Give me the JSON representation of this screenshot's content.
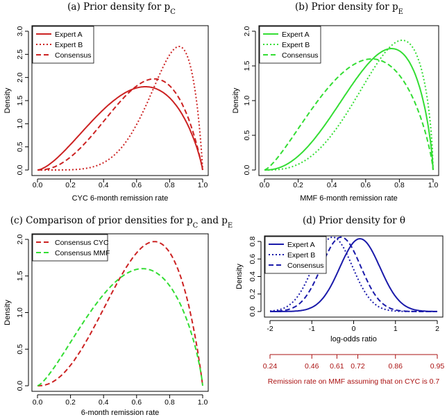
{
  "chart_data": [
    {
      "type": "line",
      "panel": "a",
      "title": "(a) Prior density for p",
      "title_sub": "C",
      "xlabel": "CYC 6-month remission rate",
      "ylabel": "Density",
      "xlim": [
        0,
        1
      ],
      "ylim": [
        0,
        3.0
      ],
      "xticks": [
        0.0,
        0.2,
        0.4,
        0.6,
        0.8,
        1.0
      ],
      "xtick_labels": [
        "0.0",
        "0.2",
        "0.4",
        "0.6",
        "0.8",
        "1.0"
      ],
      "yticks": [
        0.0,
        0.5,
        1.0,
        1.5,
        2.0,
        2.5,
        3.0
      ],
      "ytick_labels": [
        "0.0",
        "0.5",
        "1.0",
        "1.5",
        "2.0",
        "2.5",
        "3.0"
      ],
      "color": "#cc2222",
      "legend_position": "top-left",
      "series": [
        {
          "name": "Expert A",
          "dash": "solid",
          "alpha": 2.6,
          "beta": 1.85,
          "peak_x": 0.65,
          "peak_y": 1.8
        },
        {
          "name": "Expert B",
          "dash": "dotted",
          "alpha": 6.4,
          "beta": 1.9,
          "peak_x": 0.85,
          "peak_y": 2.67
        },
        {
          "name": "Consensus",
          "dash": "dashed",
          "alpha": 3.3,
          "beta": 1.95,
          "peak_x": 0.71,
          "peak_y": 1.97
        }
      ]
    },
    {
      "type": "line",
      "panel": "b",
      "title": "(b) Prior density for p",
      "title_sub": "E",
      "xlabel": "MMF 6-month remission rate",
      "ylabel": "Density",
      "xlim": [
        0,
        1
      ],
      "ylim": [
        0,
        2.0
      ],
      "xticks": [
        0.0,
        0.2,
        0.4,
        0.6,
        0.8,
        1.0
      ],
      "xtick_labels": [
        "0.0",
        "0.2",
        "0.4",
        "0.6",
        "0.8",
        "1.0"
      ],
      "yticks": [
        0.0,
        0.5,
        1.0,
        1.5,
        2.0
      ],
      "ytick_labels": [
        "0.0",
        "0.5",
        "1.0",
        "1.5",
        "2.0"
      ],
      "color": "#33dd33",
      "legend_position": "top-left",
      "series": [
        {
          "name": "Expert A",
          "dash": "solid",
          "alpha": 3.3,
          "beta": 1.75,
          "peak_x": 0.76,
          "peak_y": 1.75
        },
        {
          "name": "Expert B",
          "dash": "dotted",
          "alpha": 3.9,
          "beta": 1.65,
          "peak_x": 0.82,
          "peak_y": 1.87
        },
        {
          "name": "Consensus",
          "dash": "dashed",
          "alpha": 2.4,
          "beta": 1.8,
          "peak_x": 0.64,
          "peak_y": 1.6
        }
      ]
    },
    {
      "type": "line",
      "panel": "c",
      "title": "(c) Comparison of prior densities for p",
      "title_sub": "C",
      "title_mid": " and p",
      "title_sub2": "E",
      "xlabel": "6-month remission rate",
      "ylabel": "Density",
      "xlim": [
        0,
        1
      ],
      "ylim": [
        0,
        2.0
      ],
      "xticks": [
        0.0,
        0.2,
        0.4,
        0.6,
        0.8,
        1.0
      ],
      "xtick_labels": [
        "0.0",
        "0.2",
        "0.4",
        "0.6",
        "0.8",
        "1.0"
      ],
      "yticks": [
        0.0,
        0.5,
        1.0,
        1.5,
        2.0
      ],
      "ytick_labels": [
        "0.0",
        "0.5",
        "1.0",
        "1.5",
        "2.0"
      ],
      "legend_position": "top-left",
      "series": [
        {
          "name": "Consensus CYC",
          "dash": "dashed",
          "color": "#cc2222",
          "alpha": 3.3,
          "beta": 1.95,
          "peak_x": 0.71,
          "peak_y": 1.97
        },
        {
          "name": "Consensus MMF",
          "dash": "dashed",
          "color": "#33dd33",
          "alpha": 2.4,
          "beta": 1.8,
          "peak_x": 0.64,
          "peak_y": 1.6
        }
      ]
    },
    {
      "type": "line",
      "panel": "d",
      "title": "(d) Prior density for θ",
      "xlabel": "log-odds ratio",
      "ylabel": "Density",
      "xlim": [
        -2,
        2
      ],
      "ylim": [
        0,
        0.8
      ],
      "xticks": [
        -2,
        -1,
        0,
        1,
        2
      ],
      "xtick_labels": [
        "-2",
        "-1",
        "0",
        "1",
        "2"
      ],
      "yticks": [
        0.0,
        0.2,
        0.4,
        0.6,
        0.8
      ],
      "ytick_labels": [
        "0.0",
        "0.2",
        "0.4",
        "0.6",
        "0.8"
      ],
      "color": "#1a1aaa",
      "legend_position": "top-left",
      "series": [
        {
          "name": "Expert A",
          "dash": "solid",
          "mean": 0.15,
          "sd": 0.48
        },
        {
          "name": "Expert B",
          "dash": "dotted",
          "mean": -0.5,
          "sd": 0.47
        },
        {
          "name": "Consensus",
          "dash": "dashed",
          "mean": -0.3,
          "sd": 0.47
        }
      ],
      "secondary_axis": {
        "label": "Remission rate on MMF assuming that on CYC is 0.7",
        "tick_labels": [
          "0.24",
          "0.46",
          "0.61",
          "0.72",
          "0.86",
          "0.95"
        ],
        "tick_positions_logodds": [
          -2.0,
          -1.0,
          -0.4,
          0.1,
          1.0,
          2.0
        ],
        "color": "#aa1111"
      }
    }
  ]
}
